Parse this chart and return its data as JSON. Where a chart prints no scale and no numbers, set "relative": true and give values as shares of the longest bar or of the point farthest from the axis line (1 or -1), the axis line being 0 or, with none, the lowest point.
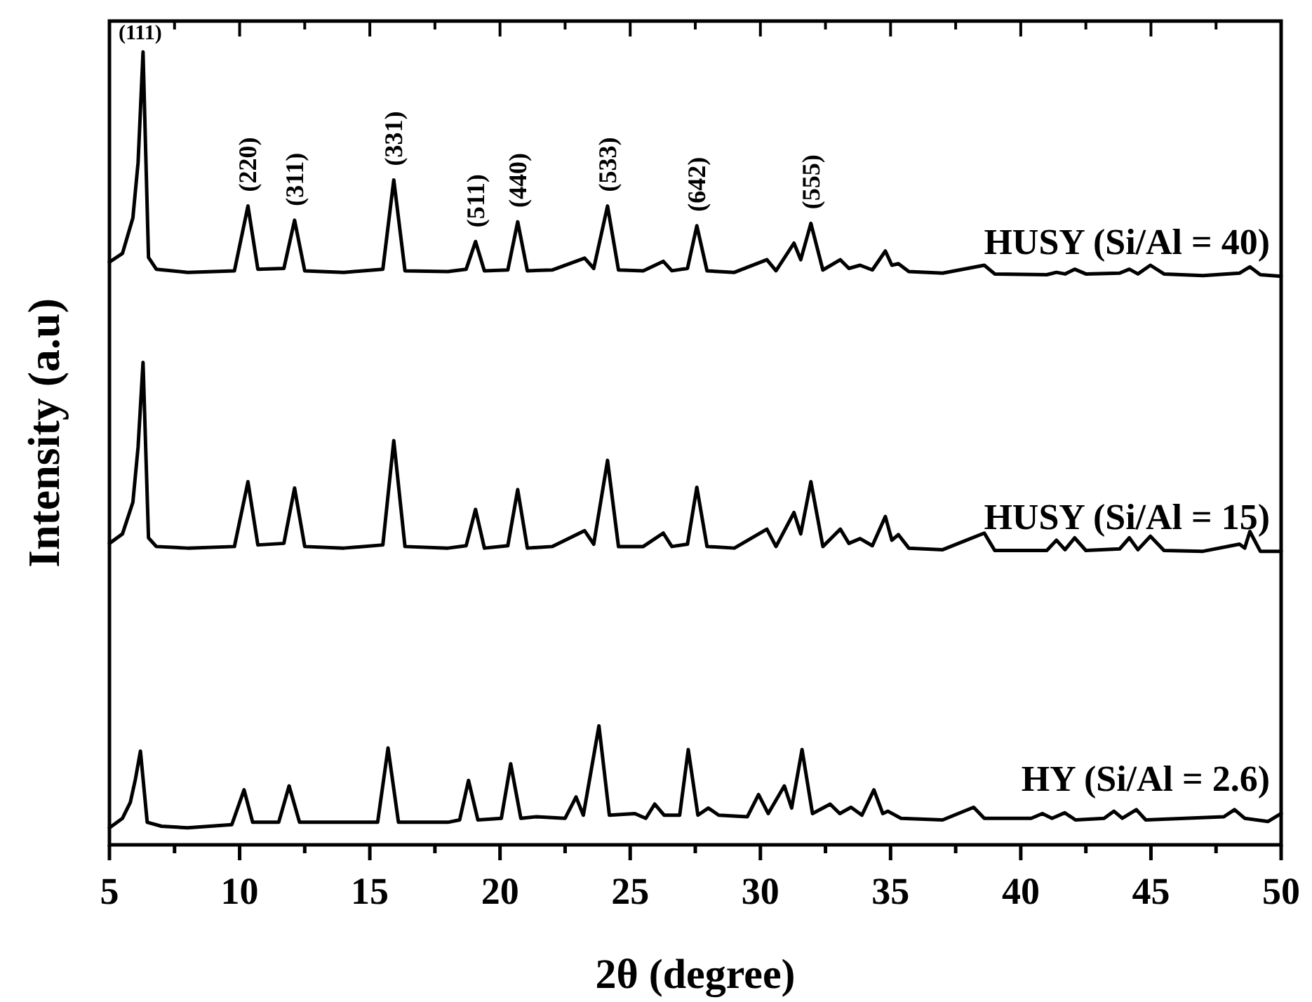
{
  "chart_data": {
    "type": "line",
    "relative": true,
    "xlabel": "2θ (degree)",
    "ylabel": "Intensity (a.u)",
    "xlim": [
      5,
      50
    ],
    "xticks": [
      5,
      {
        "value": 7.5,
        "label": null
      },
      10,
      {
        "value": 12.5,
        "label": null
      },
      15,
      {
        "value": 17.5,
        "label": null
      },
      20,
      {
        "value": 22.5,
        "label": null
      },
      25,
      {
        "value": 27.5,
        "label": null
      },
      30,
      {
        "value": 32.5,
        "label": null
      },
      35,
      {
        "value": 37.5,
        "label": null
      },
      40,
      {
        "value": 42.5,
        "label": null
      },
      45,
      {
        "value": 47.5,
        "label": null
      },
      50
    ],
    "tick_labels": "x",
    "marker": "none",
    "line_style": "solid",
    "series": [
      {
        "name": "HUSY (Si/Al = 40)",
        "color": "#000000",
        "x": [
          5,
          5.5,
          5.9,
          6.1,
          6.29,
          6.5,
          6.8,
          8,
          9.8,
          10.32,
          10.7,
          11.7,
          12.11,
          12.5,
          14,
          15.5,
          15.92,
          16.35,
          18,
          18.7,
          19.06,
          19.4,
          20.3,
          20.68,
          21.05,
          22,
          23.25,
          23.6,
          24.13,
          24.55,
          25.5,
          26.27,
          26.6,
          27.2,
          27.56,
          27.95,
          29,
          30.25,
          30.6,
          31.29,
          31.55,
          31.94,
          32.4,
          33.07,
          33.4,
          33.83,
          34.3,
          34.8,
          35.05,
          35.3,
          35.7,
          37,
          38.6,
          39,
          41,
          41.37,
          41.7,
          42.07,
          42.5,
          43.8,
          44.17,
          44.5,
          44.98,
          45.5,
          47,
          48.4,
          48.8,
          49.2,
          50
        ],
        "values": [
          0.734,
          0.745,
          0.79,
          0.86,
          1.0,
          0.74,
          0.725,
          0.721,
          0.723,
          0.805,
          0.725,
          0.726,
          0.787,
          0.723,
          0.721,
          0.725,
          0.838,
          0.723,
          0.722,
          0.725,
          0.76,
          0.723,
          0.724,
          0.785,
          0.723,
          0.724,
          0.739,
          0.726,
          0.805,
          0.724,
          0.723,
          0.735,
          0.723,
          0.726,
          0.78,
          0.723,
          0.721,
          0.737,
          0.723,
          0.758,
          0.737,
          0.783,
          0.724,
          0.737,
          0.726,
          0.73,
          0.724,
          0.748,
          0.73,
          0.732,
          0.722,
          0.72,
          0.73,
          0.719,
          0.718,
          0.721,
          0.719,
          0.725,
          0.719,
          0.72,
          0.725,
          0.719,
          0.73,
          0.719,
          0.717,
          0.72,
          0.728,
          0.718,
          0.716
        ]
      },
      {
        "name": "HUSY (Si/Al = 15)",
        "color": "#000000",
        "x": [
          5,
          5.5,
          5.9,
          6.1,
          6.29,
          6.5,
          6.8,
          8,
          9.8,
          10.32,
          10.7,
          11.7,
          12.11,
          12.5,
          14,
          15.5,
          15.92,
          16.35,
          18,
          18.7,
          19.06,
          19.4,
          20.3,
          20.68,
          21.05,
          22,
          23.25,
          23.6,
          24.13,
          24.55,
          25.5,
          26.27,
          26.6,
          27.2,
          27.56,
          27.95,
          29,
          30.25,
          30.6,
          31.29,
          31.55,
          31.94,
          32.4,
          33.07,
          33.4,
          33.83,
          34.3,
          34.8,
          35.05,
          35.3,
          35.7,
          37,
          38.6,
          39,
          41,
          41.37,
          41.7,
          42.07,
          42.5,
          43.8,
          44.17,
          44.5,
          44.98,
          45.5,
          47,
          48.4,
          48.6,
          48.8,
          49.2,
          50
        ],
        "values": [
          0.378,
          0.39,
          0.43,
          0.5,
          0.607,
          0.385,
          0.374,
          0.372,
          0.374,
          0.456,
          0.376,
          0.378,
          0.448,
          0.374,
          0.372,
          0.376,
          0.508,
          0.374,
          0.372,
          0.375,
          0.421,
          0.372,
          0.375,
          0.446,
          0.372,
          0.374,
          0.394,
          0.377,
          0.483,
          0.374,
          0.374,
          0.391,
          0.374,
          0.377,
          0.449,
          0.374,
          0.372,
          0.396,
          0.374,
          0.417,
          0.39,
          0.456,
          0.374,
          0.396,
          0.378,
          0.384,
          0.375,
          0.412,
          0.382,
          0.389,
          0.372,
          0.37,
          0.391,
          0.369,
          0.369,
          0.382,
          0.37,
          0.385,
          0.369,
          0.371,
          0.385,
          0.37,
          0.387,
          0.369,
          0.368,
          0.377,
          0.372,
          0.393,
          0.368,
          0.368
        ]
      },
      {
        "name": "HY (Si/Al = 2.6)",
        "color": "#000000",
        "x": [
          5,
          5.5,
          5.8,
          6.0,
          6.19,
          6.45,
          7,
          8,
          9.7,
          10.17,
          10.5,
          11.5,
          11.9,
          12.3,
          14,
          15.3,
          15.7,
          16.1,
          18,
          18.45,
          18.79,
          19.15,
          20.05,
          20.41,
          20.8,
          21.41,
          22.5,
          22.92,
          23.2,
          23.8,
          24.2,
          25.18,
          25.6,
          25.94,
          26.3,
          26.9,
          27.23,
          27.6,
          28.0,
          28.4,
          29.5,
          29.93,
          30.3,
          30.92,
          31.2,
          31.6,
          32.0,
          32.68,
          33.05,
          33.48,
          33.9,
          34.36,
          34.7,
          34.9,
          35.4,
          37,
          38.19,
          38.6,
          40.4,
          40.83,
          41.2,
          41.69,
          42.1,
          43.2,
          43.58,
          43.9,
          44.44,
          44.8,
          47.8,
          48.21,
          48.6,
          49.5,
          50
        ],
        "values": [
          0.018,
          0.03,
          0.05,
          0.08,
          0.115,
          0.025,
          0.02,
          0.018,
          0.022,
          0.066,
          0.025,
          0.025,
          0.071,
          0.025,
          0.025,
          0.025,
          0.119,
          0.025,
          0.025,
          0.028,
          0.078,
          0.028,
          0.03,
          0.099,
          0.03,
          0.032,
          0.03,
          0.057,
          0.034,
          0.147,
          0.034,
          0.036,
          0.03,
          0.048,
          0.034,
          0.034,
          0.117,
          0.034,
          0.043,
          0.034,
          0.032,
          0.06,
          0.036,
          0.071,
          0.043,
          0.117,
          0.036,
          0.048,
          0.036,
          0.044,
          0.034,
          0.066,
          0.036,
          0.039,
          0.03,
          0.028,
          0.044,
          0.03,
          0.03,
          0.036,
          0.03,
          0.037,
          0.028,
          0.03,
          0.039,
          0.03,
          0.041,
          0.028,
          0.032,
          0.041,
          0.03,
          0.026,
          0.036
        ]
      }
    ],
    "annotations": [
      {
        "text": "(111)",
        "x": 6.29,
        "y": 1.0
      },
      {
        "text": "(220)",
        "x": 10.32,
        "y": 0.805
      },
      {
        "text": "(311)",
        "x": 12.11,
        "y": 0.787
      },
      {
        "text": "(331)",
        "x": 15.92,
        "y": 0.838
      },
      {
        "text": "(511)",
        "x": 19.06,
        "y": 0.76
      },
      {
        "text": "(440)",
        "x": 20.68,
        "y": 0.785
      },
      {
        "text": "(533)",
        "x": 24.13,
        "y": 0.805
      },
      {
        "text": "(642)",
        "x": 27.56,
        "y": 0.78
      },
      {
        "text": "(555)",
        "x": 31.94,
        "y": 0.783
      }
    ]
  }
}
